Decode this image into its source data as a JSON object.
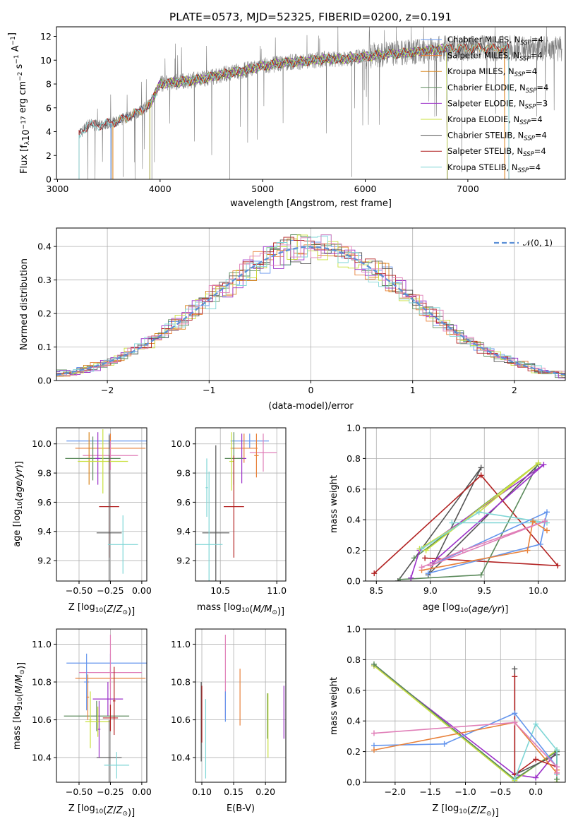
{
  "colors": [
    "#6495ed",
    "#e8813a",
    "#d9851c",
    "#5b8a5b",
    "#9b30c8",
    "#c8e03c",
    "#555555",
    "#b22222",
    "#7fd6d6",
    "#e07fb8"
  ],
  "chart_data": [
    {
      "id": "spectrum",
      "type": "line",
      "title": "PLATE=0573, MJD=52325, FIBERID=0200, z=0.191",
      "xlabel": "wavelength [Angstrom, rest frame]",
      "ylabel": "Flux [f$_{\\lambda}$10$^{-17}$ erg cm$^{-2}$ s$^{-1}$ A$^{-1}$]",
      "ylabel_display": "Flux [fλ10⁻¹⁷ erg cm⁻² s⁻¹ A⁻¹]",
      "xlim": [
        2990,
        7950
      ],
      "ylim": [
        0,
        12.8
      ],
      "xticks": [
        3000,
        4000,
        5000,
        6000,
        7000
      ],
      "yticks": [
        0,
        2,
        4,
        6,
        8,
        10,
        12
      ],
      "grid": false,
      "legend_position": "top-right",
      "legend": [
        {
          "label": "Chabrier MILES, N",
          "sub": "SSP",
          "suffix": "=4",
          "color": "#6495ed"
        },
        {
          "label": "Salpeter MILES, N",
          "sub": "SSP",
          "suffix": "=4",
          "color": "#e8813a"
        },
        {
          "label": "Kroupa MILES, N",
          "sub": "SSP",
          "suffix": "=4",
          "color": "#d9851c"
        },
        {
          "label": "Chabrier ELODIE, N",
          "sub": "SSP",
          "suffix": "=4",
          "color": "#5b8a5b"
        },
        {
          "label": "Salpeter ELODIE, N",
          "sub": "SSP",
          "suffix": "=3",
          "color": "#9b30c8"
        },
        {
          "label": "Kroupa ELODIE, N",
          "sub": "SSP",
          "suffix": "=4",
          "color": "#c8e03c"
        },
        {
          "label": "Chabrier STELIB, N",
          "sub": "SSP",
          "suffix": "=4",
          "color": "#555555"
        },
        {
          "label": "Salpeter STELIB, N",
          "sub": "SSP",
          "suffix": "=4",
          "color": "#b22222"
        },
        {
          "label": "Kroupa STELIB, N",
          "sub": "SSP",
          "suffix": "=4",
          "color": "#7fd6d6"
        }
      ],
      "continuum": [
        [
          3200,
          3.6
        ],
        [
          3300,
          4.6
        ],
        [
          3400,
          4.5
        ],
        [
          3500,
          4.7
        ],
        [
          3600,
          4.9
        ],
        [
          3700,
          5.3
        ],
        [
          3800,
          5.7
        ],
        [
          3900,
          6.3
        ],
        [
          4000,
          8.0
        ],
        [
          4200,
          8.2
        ],
        [
          4400,
          8.4
        ],
        [
          4600,
          8.8
        ],
        [
          4800,
          9.1
        ],
        [
          5000,
          9.5
        ],
        [
          5200,
          9.8
        ],
        [
          5400,
          9.9
        ],
        [
          5600,
          10.1
        ],
        [
          5800,
          10.1
        ],
        [
          6000,
          10.3
        ],
        [
          6200,
          10.5
        ],
        [
          6400,
          10.6
        ],
        [
          6600,
          10.8
        ],
        [
          6800,
          11.0
        ],
        [
          7000,
          11.0
        ],
        [
          7200,
          11.0
        ],
        [
          7400,
          11.0
        ]
      ],
      "data_range": [
        3210,
        7920
      ],
      "model_edges": {
        "Chabrier MILES": 3520,
        "Salpeter MILES": 3540,
        "Kroupa MILES": 3540,
        "Chabrier ELODIE": 3900,
        "Salpeter ELODIE": 3900,
        "Kroupa ELODIE": 3900,
        "Chabrier STELIB": 3210,
        "Salpeter STELIB": 3210,
        "Kroupa STELIB": 3210
      },
      "model_red_edge": {
        "Chabrier MILES": 6800,
        "Salpeter MILES": 7360,
        "Kroupa MILES": 7360,
        "Chabrier ELODIE": 6800,
        "Salpeter ELODIE": 6800,
        "Kroupa ELODIE": 6800,
        "Chabrier STELIB": 7400,
        "Salpeter STELIB": 7400,
        "Kroupa STELIB": 7400
      }
    },
    {
      "id": "residuals",
      "type": "histogram",
      "xlabel": "(data-model)/error",
      "ylabel": "Normed distribution",
      "xlim": [
        -2.5,
        2.5
      ],
      "ylim": [
        0,
        0.455
      ],
      "xticks": [
        -2,
        -1,
        0,
        1,
        2
      ],
      "yticks": [
        0.0,
        0.1,
        0.2,
        0.3,
        0.4
      ],
      "grid": true,
      "legend_position": "top-right",
      "legend_label": "N(0, 1)",
      "bin_width": 0.1
    },
    {
      "id": "age-vs-Z",
      "type": "errorbar",
      "xlabel": "Z [log10(Z/Z⊙)]",
      "ylabel": "age  [log10(age/yr)]",
      "xlim": [
        -0.68,
        0.04
      ],
      "ylim": [
        9.06,
        10.11
      ],
      "xticks": [
        -0.5,
        -0.25,
        0.0
      ],
      "yticks": [
        9.2,
        9.4,
        9.6,
        9.8,
        10.0
      ],
      "grid": true,
      "points": [
        {
          "x": -0.26,
          "y": 10.02,
          "xerr": 0.34,
          "yerr": 0.05,
          "color": "#6495ed"
        },
        {
          "x": -0.25,
          "y": 9.97,
          "xerr": 0.28,
          "yerr": 0.1,
          "color": "#e8813a"
        },
        {
          "x": -0.25,
          "y": 9.92,
          "xerr": 0.22,
          "yerr": 0.1,
          "color": "#e07fb8"
        },
        {
          "x": -0.42,
          "y": 9.9,
          "xerr": 0.02,
          "yerr": 0.18,
          "color": "#d9851c"
        },
        {
          "x": -0.39,
          "y": 9.9,
          "xerr": 0.22,
          "yerr": 0.15,
          "color": "#5b8a5b"
        },
        {
          "x": -0.35,
          "y": 9.9,
          "xerr": 0.02,
          "yerr": 0.18,
          "color": "#9b30c8"
        },
        {
          "x": -0.31,
          "y": 9.88,
          "xerr": 0.2,
          "yerr": 0.22,
          "color": "#c8e03c"
        },
        {
          "x": -0.26,
          "y": 9.57,
          "xerr": 0.08,
          "yerr": 0.35,
          "color": "#b22222"
        },
        {
          "x": -0.26,
          "y": 9.39,
          "xerr": 0.1,
          "yerr": 0.67,
          "color": "#555555"
        },
        {
          "x": -0.15,
          "y": 9.31,
          "xerr": 0.12,
          "yerr": 0.2,
          "color": "#7fd6d6"
        }
      ]
    },
    {
      "id": "age-vs-mass",
      "type": "errorbar",
      "xlabel": "mass [log10(M/M⊙)]",
      "ylabel": "",
      "xlim": [
        10.28,
        11.08
      ],
      "ylim": [
        9.06,
        10.11
      ],
      "xticks": [
        10.5,
        11.0
      ],
      "yticks": [
        9.2,
        9.4,
        9.6,
        9.8,
        10.0
      ],
      "grid": true,
      "points": [
        {
          "x": 10.76,
          "y": 10.02,
          "xerr": 0.17,
          "yerr": 0.05,
          "color": "#6495ed"
        },
        {
          "x": 10.88,
          "y": 9.94,
          "xerr": 0.12,
          "yerr": 0.13,
          "color": "#e07fb8"
        },
        {
          "x": 10.82,
          "y": 9.92,
          "xerr": 0.02,
          "yerr": 0.15,
          "color": "#e8813a"
        },
        {
          "x": 10.71,
          "y": 9.97,
          "xerr": 0.12,
          "yerr": 0.1,
          "color": "#e8813a"
        },
        {
          "x": 10.69,
          "y": 9.9,
          "xerr": 0.04,
          "yerr": 0.17,
          "color": "#9b30c8"
        },
        {
          "x": 10.62,
          "y": 9.9,
          "xerr": 0.08,
          "yerr": 0.18,
          "color": "#5b8a5b"
        },
        {
          "x": 10.6,
          "y": 9.88,
          "xerr": 0.02,
          "yerr": 0.2,
          "color": "#c8e03c"
        },
        {
          "x": 10.62,
          "y": 9.57,
          "xerr": 0.09,
          "yerr": 0.35,
          "color": "#b22222"
        },
        {
          "x": 10.46,
          "y": 9.39,
          "xerr": 0.12,
          "yerr": 0.6,
          "color": "#555555"
        },
        {
          "x": 10.4,
          "y": 9.31,
          "xerr": 0.12,
          "yerr": 0.5,
          "color": "#7fd6d6"
        },
        {
          "x": 10.38,
          "y": 9.7,
          "xerr": 0.01,
          "yerr": 0.2,
          "color": "#7fd6d6"
        }
      ]
    },
    {
      "id": "weight-vs-age",
      "type": "line",
      "xlabel": "age  [log10(age/yr)]",
      "ylabel": "mass weight",
      "xlim": [
        8.4,
        10.25
      ],
      "ylim": [
        0,
        1
      ],
      "xticks": [
        8.5,
        9.0,
        9.5,
        10.0
      ],
      "yticks": [
        0.0,
        0.2,
        0.4,
        0.6,
        0.8,
        1.0
      ],
      "grid": true,
      "series": [
        {
          "color": "#555555",
          "x": [
            8.7,
            9.47,
            8.98,
            10.0
          ],
          "y": [
            0.0,
            0.74,
            0.04,
            0.76
          ]
        },
        {
          "color": "#b22222",
          "x": [
            8.48,
            9.47,
            10.18,
            8.95
          ],
          "y": [
            0.05,
            0.69,
            0.1,
            0.15
          ]
        },
        {
          "color": "#5b8a5b",
          "x": [
            8.72,
            9.47,
            10.0,
            8.85
          ],
          "y": [
            0.01,
            0.04,
            0.77,
            0.15
          ]
        },
        {
          "color": "#9b30c8",
          "x": [
            8.82,
            8.9,
            10.05,
            9.02
          ],
          "y": [
            0.02,
            0.2,
            0.76,
            0.12
          ]
        },
        {
          "color": "#c8e03c",
          "x": [
            8.9,
            9.45,
            10.0,
            8.96
          ],
          "y": [
            0.21,
            0.45,
            0.77,
            0.2
          ]
        },
        {
          "color": "#7fd6d6",
          "x": [
            8.92,
            9.45,
            10.08,
            9.2
          ],
          "y": [
            0.21,
            0.45,
            0.38,
            0.38
          ]
        },
        {
          "color": "#6495ed",
          "x": [
            8.98,
            10.02,
            10.08,
            9.0
          ],
          "y": [
            0.05,
            0.24,
            0.45,
            0.1
          ]
        },
        {
          "color": "#e8813a",
          "x": [
            8.92,
            9.9,
            9.95,
            10.08
          ],
          "y": [
            0.07,
            0.2,
            0.39,
            0.33
          ]
        },
        {
          "color": "#e07fb8",
          "x": [
            8.92,
            9.3,
            10.06,
            9.0
          ],
          "y": [
            0.09,
            0.2,
            0.39,
            0.1
          ]
        }
      ]
    },
    {
      "id": "mass-vs-Z",
      "type": "errorbar",
      "xlabel": "Z [log10(Z/Z⊙)]",
      "ylabel": "mass [log10(M/M⊙)]",
      "xlim": [
        -0.68,
        0.04
      ],
      "ylim": [
        10.27,
        11.08
      ],
      "xticks": [
        -0.5,
        -0.25,
        0.0
      ],
      "yticks": [
        10.4,
        10.6,
        10.8,
        11.0
      ],
      "grid": true,
      "points": [
        {
          "x": -0.25,
          "y": 10.9,
          "xerr": 0.35,
          "yerr": 0.05,
          "color": "#6495ed"
        },
        {
          "x": -0.25,
          "y": 10.82,
          "xerr": 0.28,
          "yerr": 0.06,
          "color": "#e8813a"
        },
        {
          "x": -0.25,
          "y": 10.85,
          "xerr": 0.25,
          "yerr": 0.2,
          "color": "#e07fb8"
        },
        {
          "x": -0.27,
          "y": 10.71,
          "xerr": 0.12,
          "yerr": 0.09,
          "color": "#9b30c8"
        },
        {
          "x": -0.36,
          "y": 10.62,
          "xerr": 0.26,
          "yerr": 0.08,
          "color": "#5b8a5b"
        },
        {
          "x": -0.35,
          "y": 10.59,
          "xerr": 0.1,
          "yerr": 0.08,
          "color": "#c8e03c"
        },
        {
          "x": -0.25,
          "y": 10.61,
          "xerr": 0.06,
          "yerr": 0.07,
          "color": "#b22222"
        },
        {
          "x": -0.26,
          "y": 10.4,
          "xerr": 0.1,
          "yerr": 0.2,
          "color": "#555555"
        },
        {
          "x": -0.2,
          "y": 10.36,
          "xerr": 0.1,
          "yerr": 0.07,
          "color": "#7fd6d6"
        },
        {
          "x": -0.44,
          "y": 10.8,
          "xerr": 0.02,
          "yerr": 0.15,
          "color": "#6495ed"
        },
        {
          "x": -0.43,
          "y": 10.72,
          "xerr": 0.01,
          "yerr": 0.12,
          "color": "#e8813a"
        },
        {
          "x": -0.41,
          "y": 10.6,
          "xerr": 0.01,
          "yerr": 0.15,
          "color": "#c8e03c"
        },
        {
          "x": -0.34,
          "y": 10.55,
          "xerr": 0.01,
          "yerr": 0.15,
          "color": "#9b30c8"
        },
        {
          "x": -0.22,
          "y": 10.7,
          "xerr": 0.01,
          "yerr": 0.18,
          "color": "#b22222"
        }
      ]
    },
    {
      "id": "mass-vs-ebv",
      "type": "errorbar",
      "xlabel": "E(B-V)",
      "ylabel": "",
      "xlim": [
        0.09,
        0.232
      ],
      "ylim": [
        10.27,
        11.08
      ],
      "xticks": [
        0.1,
        0.15,
        0.2
      ],
      "yticks": [
        10.4,
        10.6,
        10.8,
        11.0
      ],
      "grid": true,
      "points": [
        {
          "x": 0.099,
          "y": 10.59,
          "xerr": 0,
          "yerr": 0.21,
          "color": "#555555"
        },
        {
          "x": 0.1,
          "y": 10.63,
          "xerr": 0,
          "yerr": 0.15,
          "color": "#b22222"
        },
        {
          "x": 0.106,
          "y": 10.5,
          "xerr": 0,
          "yerr": 0.21,
          "color": "#7fd6d6"
        },
        {
          "x": 0.137,
          "y": 10.83,
          "xerr": 0,
          "yerr": 0.22,
          "color": "#e07fb8"
        },
        {
          "x": 0.137,
          "y": 10.67,
          "xerr": 0,
          "yerr": 0.08,
          "color": "#6495ed"
        },
        {
          "x": 0.16,
          "y": 10.72,
          "xerr": 0,
          "yerr": 0.15,
          "color": "#e8813a"
        },
        {
          "x": 0.203,
          "y": 10.62,
          "xerr": 0,
          "yerr": 0.12,
          "color": "#5b8a5b"
        },
        {
          "x": 0.204,
          "y": 10.57,
          "xerr": 0,
          "yerr": 0.17,
          "color": "#c8e03c"
        },
        {
          "x": 0.229,
          "y": 10.64,
          "xerr": 0,
          "yerr": 0.14,
          "color": "#9b30c8"
        }
      ]
    },
    {
      "id": "weight-vs-Z",
      "type": "line",
      "xlabel": "Z [log10(Z/Z⊙)]",
      "ylabel": "mass weight",
      "xlim": [
        -2.42,
        0.42
      ],
      "ylim": [
        0,
        1
      ],
      "xticks": [
        -2.0,
        -1.5,
        -1.0,
        -0.5,
        0.0
      ],
      "yticks": [
        0.0,
        0.2,
        0.4,
        0.6,
        0.8,
        1.0
      ],
      "grid": true,
      "series": [
        {
          "color": "#9b30c8",
          "x": [
            -2.3,
            -0.3,
            0.0,
            0.3
          ],
          "y": [
            0.76,
            0.05,
            0.03,
            0.2
          ]
        },
        {
          "color": "#c8e03c",
          "x": [
            -2.3,
            -0.3,
            0.3,
            0.3
          ],
          "y": [
            0.76,
            0.01,
            0.21,
            0.0
          ]
        },
        {
          "color": "#5b8a5b",
          "x": [
            -2.3,
            -0.3,
            0.3,
            0.3
          ],
          "y": [
            0.77,
            0.02,
            0.2,
            0.02
          ]
        },
        {
          "color": "#555555",
          "x": [
            -0.3,
            -0.3,
            0.3,
            0.3
          ],
          "y": [
            0.74,
            0.05,
            0.18,
            0.1
          ]
        },
        {
          "color": "#b22222",
          "x": [
            -0.3,
            -0.3,
            0.0,
            0.3
          ],
          "y": [
            0.69,
            0.05,
            0.15,
            0.1
          ]
        },
        {
          "color": "#7fd6d6",
          "x": [
            -0.3,
            0.0,
            0.3,
            0.3
          ],
          "y": [
            0.02,
            0.38,
            0.21,
            0.05
          ]
        },
        {
          "color": "#6495ed",
          "x": [
            -2.3,
            -1.3,
            -0.3,
            0.3
          ],
          "y": [
            0.24,
            0.25,
            0.45,
            0.1
          ]
        },
        {
          "color": "#e8813a",
          "x": [
            -2.3,
            -0.3,
            0.3,
            0.3
          ],
          "y": [
            0.21,
            0.39,
            0.06,
            0.08
          ]
        },
        {
          "color": "#e07fb8",
          "x": [
            -2.3,
            -0.3,
            0.3,
            0.3
          ],
          "y": [
            0.32,
            0.39,
            0.1,
            0.06
          ]
        }
      ]
    }
  ]
}
